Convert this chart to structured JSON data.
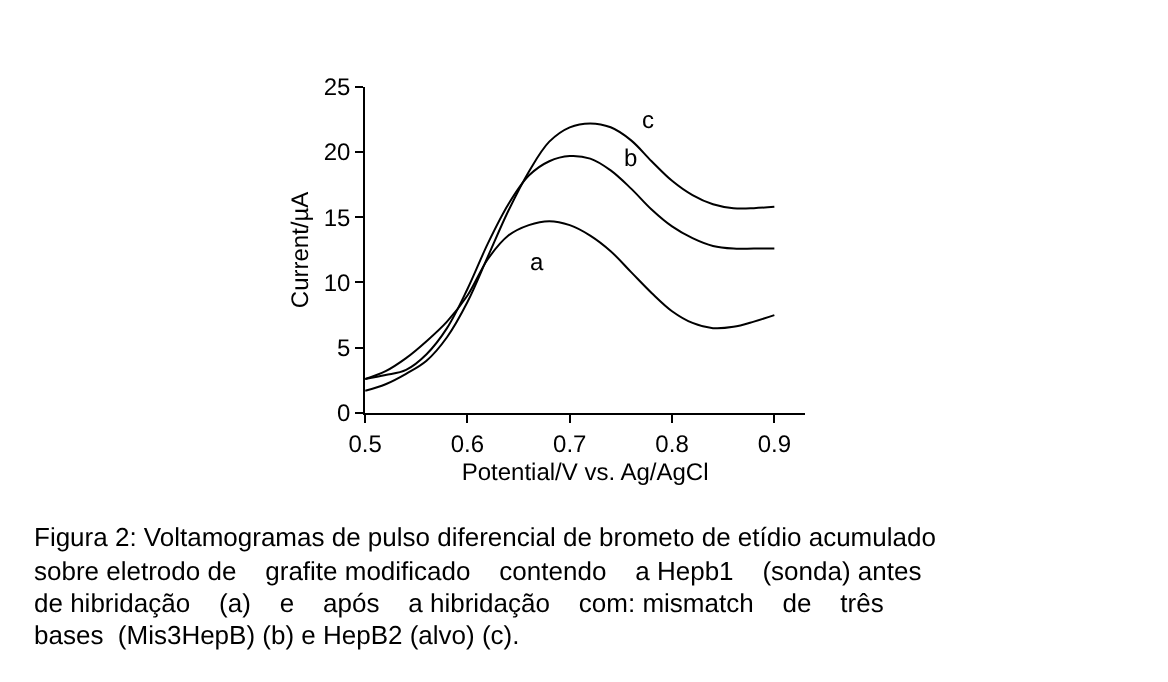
{
  "chart_data": {
    "type": "line",
    "xlabel": "Potential/V vs. Ag/AgCl",
    "ylabel": "Current/µA",
    "x": [
      0.5,
      0.52,
      0.54,
      0.56,
      0.58,
      0.6,
      0.62,
      0.64,
      0.66,
      0.68,
      0.7,
      0.72,
      0.74,
      0.76,
      0.78,
      0.8,
      0.82,
      0.84,
      0.86,
      0.88,
      0.9
    ],
    "series": [
      {
        "name": "a",
        "color": "#000000",
        "values": [
          2.6,
          3.2,
          4.2,
          5.5,
          7.0,
          9.0,
          11.8,
          13.6,
          14.4,
          14.7,
          14.4,
          13.6,
          12.4,
          10.8,
          9.2,
          7.8,
          6.9,
          6.5,
          6.6,
          7.0,
          7.5
        ]
      },
      {
        "name": "b",
        "color": "#000000",
        "values": [
          2.6,
          2.9,
          3.3,
          4.5,
          6.5,
          9.5,
          13.0,
          16.0,
          18.2,
          19.3,
          19.7,
          19.5,
          18.6,
          17.2,
          15.6,
          14.3,
          13.4,
          12.8,
          12.6,
          12.6,
          12.6
        ]
      },
      {
        "name": "c",
        "color": "#000000",
        "values": [
          1.7,
          2.2,
          3.0,
          4.0,
          5.8,
          8.5,
          12.0,
          15.5,
          18.5,
          20.8,
          21.9,
          22.2,
          21.9,
          20.9,
          19.3,
          17.8,
          16.7,
          16.0,
          15.7,
          15.7,
          15.8
        ]
      }
    ],
    "xlim": [
      0.5,
      0.93
    ],
    "ylim": [
      0,
      25
    ],
    "xticks": [
      0.5,
      0.6,
      0.7,
      0.8,
      0.9
    ],
    "yticks": [
      0,
      5,
      10,
      15,
      20,
      25
    ],
    "marker": "none",
    "line_style": "solid",
    "annotations": [
      "Figura 2: Voltamogramas de pulso diferencial de brometo de etídio acumulado",
      "sobre eletrodo de    grafite modificado    contendo    a Hepb1    (sonda) antes",
      "de hibridação    (a)    e    após    a hibridação    com: mismatch    de    três",
      "bases  (Mis3HepB) (b) e HepB2 (alvo) (c)."
    ]
  }
}
